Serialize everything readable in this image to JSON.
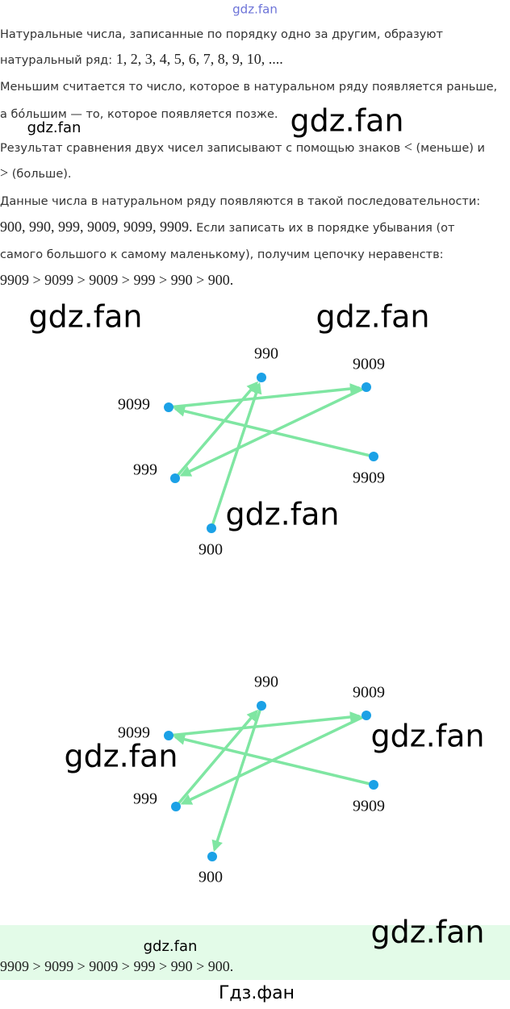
{
  "header": {
    "watermark": "gdz.fan"
  },
  "lines": [
    [
      {
        "text": "Натуральные числа, записанные по порядку одно за другим, образуют"
      }
    ],
    [
      {
        "text": "натуральный ряд: "
      },
      {
        "text": "1,  2,  3,  4,  5,  6,  7,  8,  9,  10,  ....",
        "math": true
      }
    ],
    [
      {
        "text": "Меньшим считается то число, которое в натуральном ряду появляется раньше,"
      }
    ],
    [
      {
        "text": "а бо́льшим — то, которое появляется позже."
      }
    ],
    [
      {
        "text": "Результат сравнения двух чисел записывают с помощью знаков "
      },
      {
        "text": "<",
        "math": true
      },
      {
        "text": " (меньше) и"
      }
    ],
    [
      {
        "text": ">",
        "math": true
      },
      {
        "text": " (больше)."
      }
    ],
    [
      {
        "text": "Данные числа в натуральном ряду появляются в такой последовательности:"
      }
    ],
    [
      {
        "text": "900, 990, 999, 9009, 9099, 9909.",
        "math": true
      },
      {
        "text": " Если записать их в порядке убывания (от"
      }
    ],
    [
      {
        "text": "самого большого к самому маленькому), получим цепочку неравенств:"
      }
    ],
    [
      {
        "text": "9909 > 9099 > 9009 > 999 > 990 > 900.",
        "math": true
      }
    ]
  ],
  "diagrams": [
    {
      "nodes": [
        "990",
        "9009",
        "9099",
        "9909",
        "999",
        "900"
      ]
    },
    {
      "nodes": [
        "990",
        "9009",
        "9099",
        "9909",
        "999",
        "900"
      ]
    }
  ],
  "answer": {
    "watermark": "gdz.fan",
    "text": "9909 > 9099 > 9009 > 999 > 990 > 900."
  },
  "footer": "Гдз.фан",
  "watermarks": [
    "gdz.fan",
    "gdz.fan",
    "gdz.fan",
    "gdz.fan",
    "gdz.fan",
    "gdz.fan",
    "gdz.fan",
    "gdz.fan"
  ]
}
